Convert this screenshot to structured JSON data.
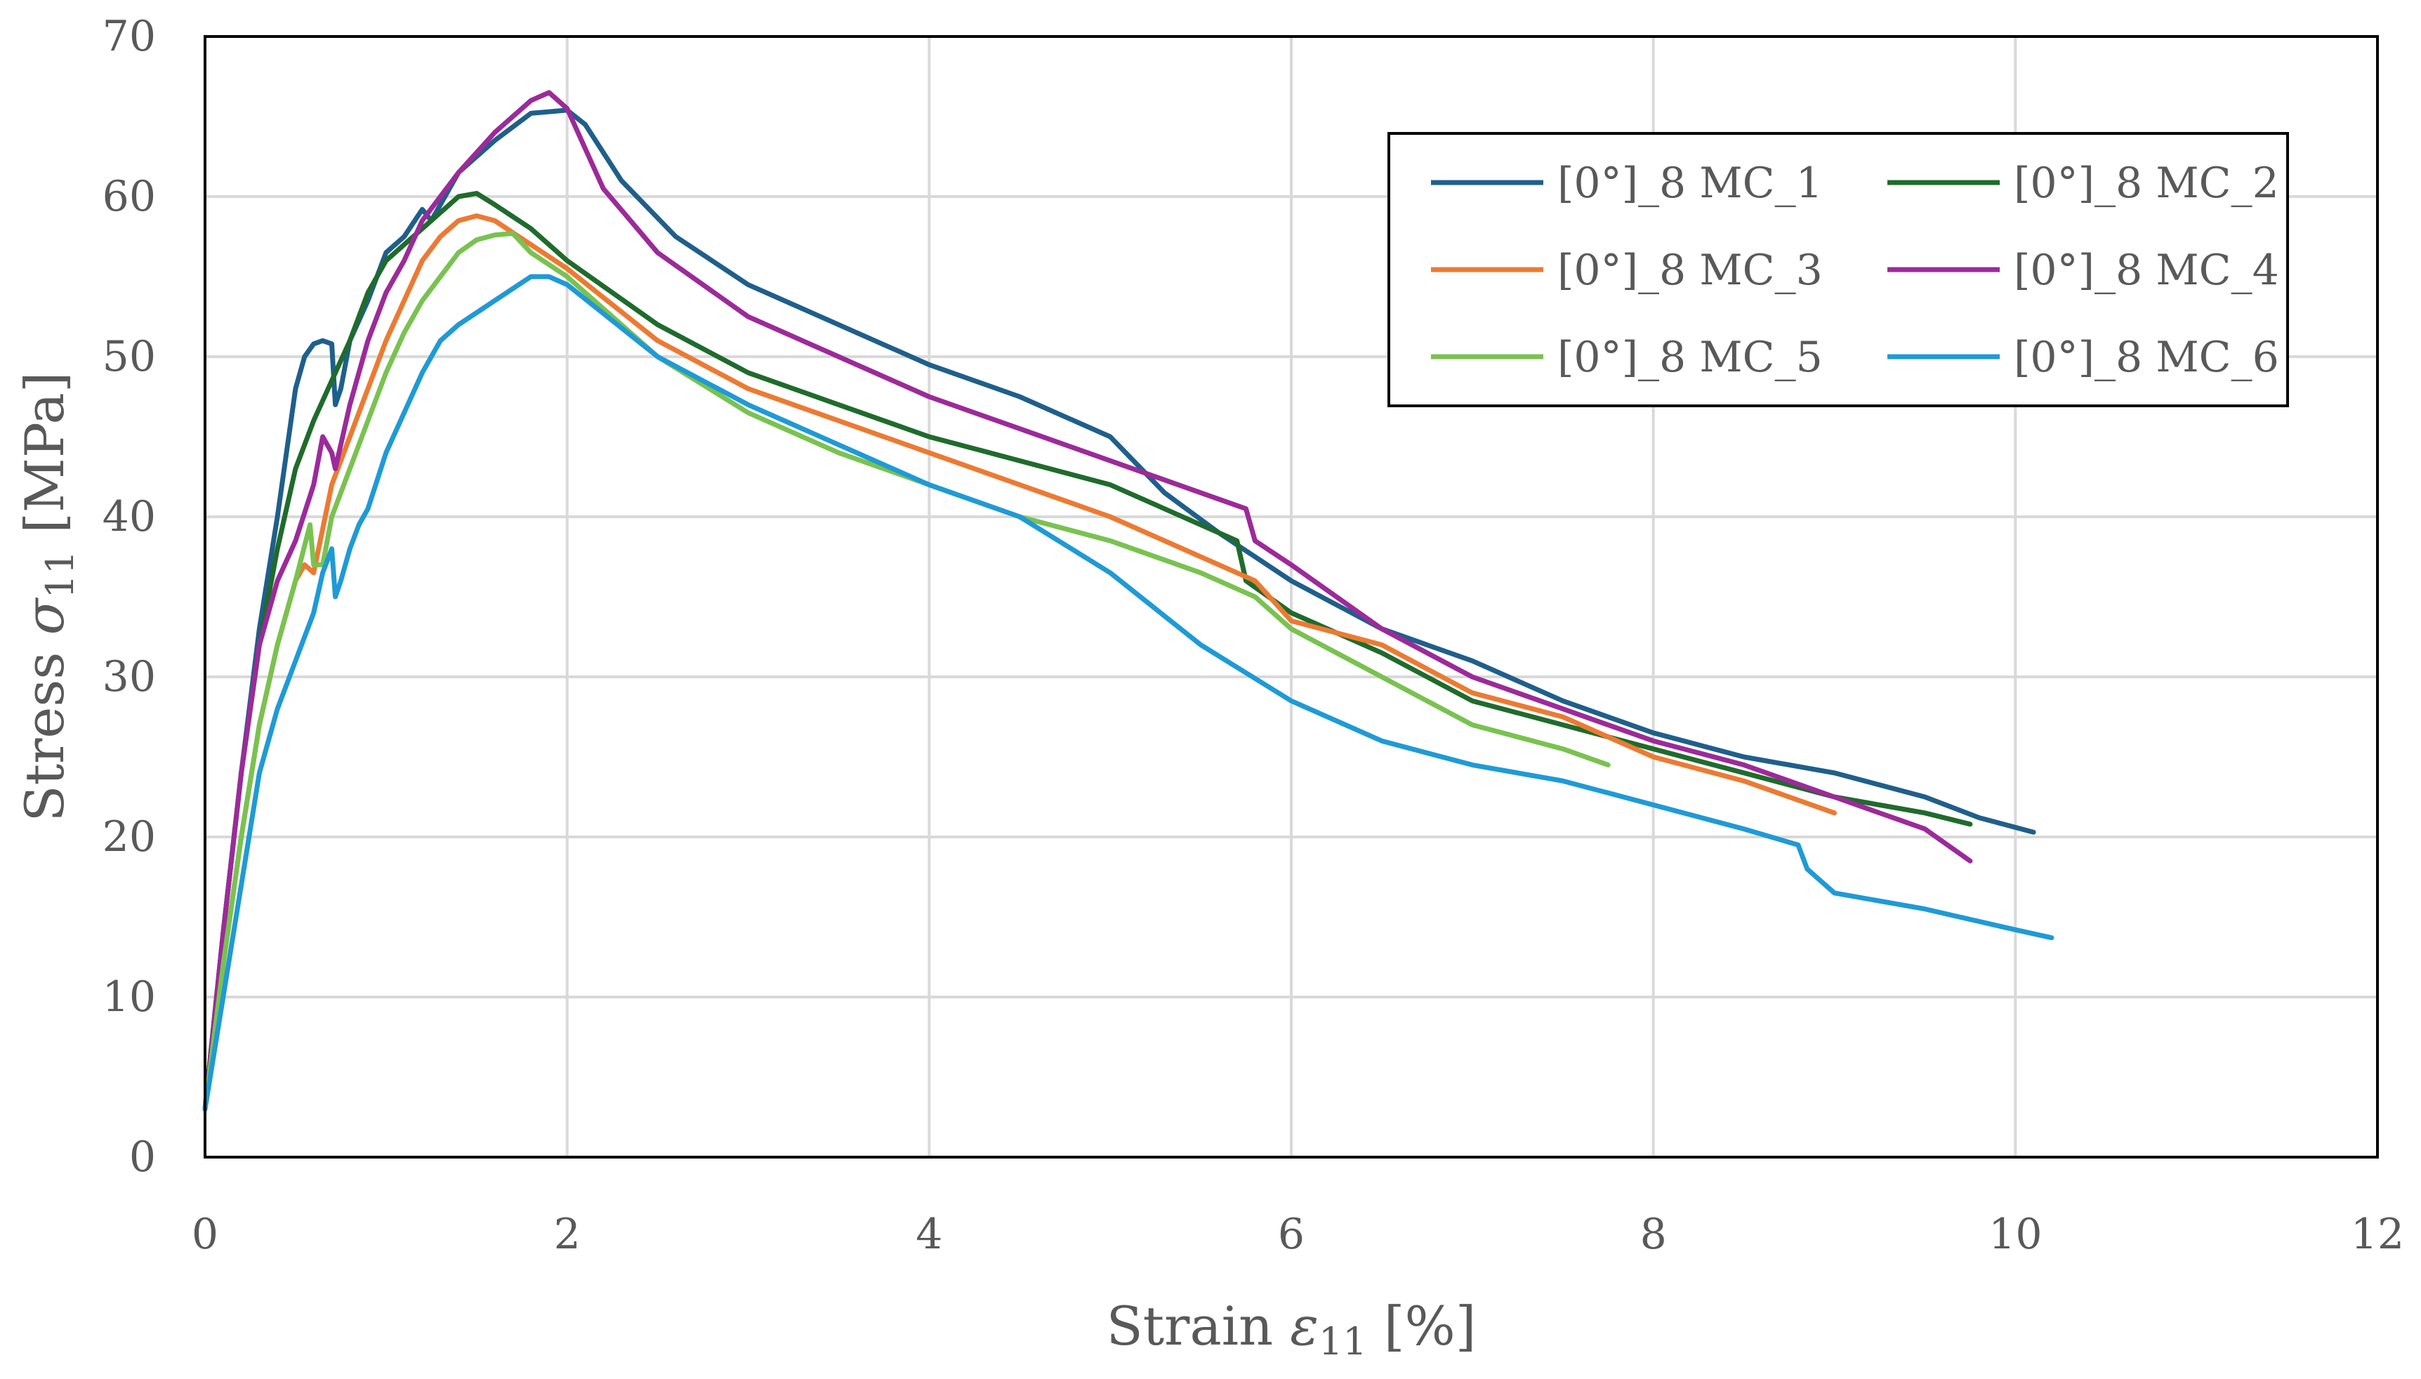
{
  "chart_data": {
    "type": "line",
    "title": "",
    "xlabel": "Strain ε11 [%]",
    "xlabel_parts": {
      "prefix": "Strain ",
      "symbol": "ε",
      "sub": "11",
      "suffix": " [%]"
    },
    "ylabel": "Stress σ11 [MPa]",
    "ylabel_parts": {
      "prefix": "Stress ",
      "symbol": "σ",
      "sub": "11",
      "suffix": " [MPa]"
    },
    "xlim": [
      0,
      12
    ],
    "ylim": [
      0,
      70
    ],
    "xticks": [
      "0",
      "2",
      "4",
      "6",
      "8",
      "10",
      "12"
    ],
    "yticks": [
      "0",
      "10",
      "20",
      "30",
      "40",
      "50",
      "60",
      "70"
    ],
    "grid": true,
    "legend_position": "top-right",
    "series": [
      {
        "name": "[0°]_8 MC_1",
        "color": "#1f5f8b",
        "x": [
          0,
          0.1,
          0.2,
          0.3,
          0.4,
          0.45,
          0.5,
          0.55,
          0.6,
          0.65,
          0.7,
          0.72,
          0.75,
          0.8,
          0.9,
          1.0,
          1.1,
          1.2,
          1.25,
          1.3,
          1.4,
          1.6,
          1.8,
          2.0,
          2.1,
          2.3,
          2.6,
          3.0,
          3.5,
          4.0,
          4.5,
          5.0,
          5.3,
          5.6,
          6.0,
          6.5,
          7.0,
          7.5,
          8.0,
          8.5,
          9.0,
          9.5,
          9.8,
          10.1
        ],
        "y": [
          3,
          14,
          24,
          33,
          40,
          44,
          48,
          50,
          50.8,
          51,
          50.8,
          47,
          48,
          51,
          53.5,
          56.5,
          57.5,
          59.2,
          58.5,
          59.5,
          61.5,
          63.5,
          65.2,
          65.4,
          64.5,
          61,
          57.5,
          54.5,
          52,
          49.5,
          47.5,
          45,
          41.5,
          39,
          36,
          33,
          31,
          28.5,
          26.5,
          25,
          24,
          22.5,
          21.2,
          20.3
        ]
      },
      {
        "name": "[0°]_8 MC_2",
        "color": "#1f6b2c",
        "x": [
          0,
          0.1,
          0.2,
          0.3,
          0.4,
          0.5,
          0.6,
          0.7,
          0.8,
          0.9,
          1.0,
          1.1,
          1.2,
          1.3,
          1.4,
          1.5,
          1.6,
          1.8,
          2.0,
          2.5,
          3.0,
          3.5,
          4.0,
          4.5,
          5.0,
          5.5,
          5.7,
          5.75,
          6.0,
          6.5,
          7.0,
          7.5,
          8.0,
          8.5,
          9.0,
          9.5,
          9.75
        ],
        "y": [
          3,
          14,
          24,
          32,
          38,
          43,
          46,
          48.5,
          51,
          54,
          56,
          57,
          58,
          59,
          60,
          60.2,
          59.5,
          58,
          56,
          52,
          49,
          47,
          45,
          43.5,
          42,
          39.5,
          38.5,
          36,
          34,
          31.5,
          28.5,
          27,
          25.5,
          24,
          22.5,
          21.5,
          20.8
        ]
      },
      {
        "name": "[0°]_8 MC_3",
        "color": "#ec7a32",
        "x": [
          0,
          0.1,
          0.2,
          0.3,
          0.4,
          0.5,
          0.55,
          0.6,
          0.7,
          0.8,
          0.9,
          1.0,
          1.1,
          1.2,
          1.3,
          1.4,
          1.5,
          1.6,
          1.8,
          2.0,
          2.5,
          3.0,
          3.5,
          4.0,
          4.5,
          5.0,
          5.5,
          5.8,
          6.0,
          6.5,
          7.0,
          7.5,
          8.0,
          8.5,
          9.0
        ],
        "y": [
          3,
          12,
          20,
          27,
          32,
          36,
          37,
          36.5,
          42,
          45,
          48,
          51,
          53.5,
          56,
          57.5,
          58.5,
          58.8,
          58.5,
          57,
          55.5,
          51,
          48,
          46,
          44,
          42,
          40,
          37.5,
          36,
          33.5,
          32,
          29,
          27.5,
          25,
          23.5,
          21.5
        ]
      },
      {
        "name": "[0°]_8 MC_4",
        "color": "#9c2a9a",
        "x": [
          0,
          0.1,
          0.2,
          0.3,
          0.4,
          0.5,
          0.6,
          0.65,
          0.7,
          0.72,
          0.8,
          0.9,
          1.0,
          1.1,
          1.2,
          1.4,
          1.6,
          1.8,
          1.9,
          2.0,
          2.2,
          2.5,
          3.0,
          3.5,
          4.0,
          4.5,
          5.0,
          5.5,
          5.75,
          5.8,
          6.0,
          6.5,
          7.0,
          7.5,
          8.0,
          8.5,
          9.0,
          9.5,
          9.75
        ],
        "y": [
          3,
          14,
          24,
          32,
          36,
          38.5,
          42,
          45,
          44,
          43,
          47,
          51,
          54,
          56,
          58.5,
          61.5,
          64,
          66,
          66.5,
          65.5,
          60.5,
          56.5,
          52.5,
          50,
          47.5,
          45.5,
          43.5,
          41.5,
          40.5,
          38.5,
          37,
          33,
          30,
          28,
          26,
          24.5,
          22.5,
          20.5,
          18.5
        ]
      },
      {
        "name": "[0°]_8 MC_5",
        "color": "#79c250",
        "x": [
          0,
          0.1,
          0.2,
          0.3,
          0.4,
          0.5,
          0.58,
          0.6,
          0.65,
          0.7,
          0.8,
          0.9,
          1.0,
          1.1,
          1.2,
          1.3,
          1.4,
          1.5,
          1.6,
          1.7,
          1.8,
          2.0,
          2.5,
          3.0,
          3.5,
          4.0,
          4.5,
          5.0,
          5.5,
          5.8,
          6.0,
          6.5,
          7.0,
          7.5,
          7.75
        ],
        "y": [
          3,
          12,
          20,
          27,
          32,
          36,
          39.5,
          37,
          37,
          40,
          43,
          46,
          49,
          51.5,
          53.5,
          55,
          56.5,
          57.3,
          57.6,
          57.7,
          56.5,
          55,
          50,
          46.5,
          44,
          42,
          40,
          38.5,
          36.5,
          35,
          33,
          30,
          27,
          25.5,
          24.5
        ]
      },
      {
        "name": "[0°]_8 MC_6",
        "color": "#1f9ad6",
        "x": [
          0,
          0.1,
          0.2,
          0.3,
          0.4,
          0.5,
          0.6,
          0.65,
          0.7,
          0.72,
          0.75,
          0.8,
          0.85,
          0.9,
          1.0,
          1.1,
          1.2,
          1.3,
          1.4,
          1.6,
          1.8,
          1.9,
          2.0,
          2.5,
          3.0,
          3.5,
          4.0,
          4.5,
          5.0,
          5.5,
          6.0,
          6.5,
          7.0,
          7.5,
          8.0,
          8.5,
          8.8,
          8.85,
          9.0,
          9.5,
          10.0,
          10.2
        ],
        "y": [
          3,
          10,
          17,
          24,
          28,
          31,
          34,
          36.5,
          38,
          35,
          36,
          38,
          39.5,
          40.5,
          44,
          46.5,
          49,
          51,
          52,
          53.5,
          55,
          55,
          54.5,
          50,
          47,
          44.5,
          42,
          40,
          36.5,
          32,
          28.5,
          26,
          24.5,
          23.5,
          22,
          20.5,
          19.5,
          18,
          16.5,
          15.5,
          14.2,
          13.7
        ]
      }
    ]
  }
}
